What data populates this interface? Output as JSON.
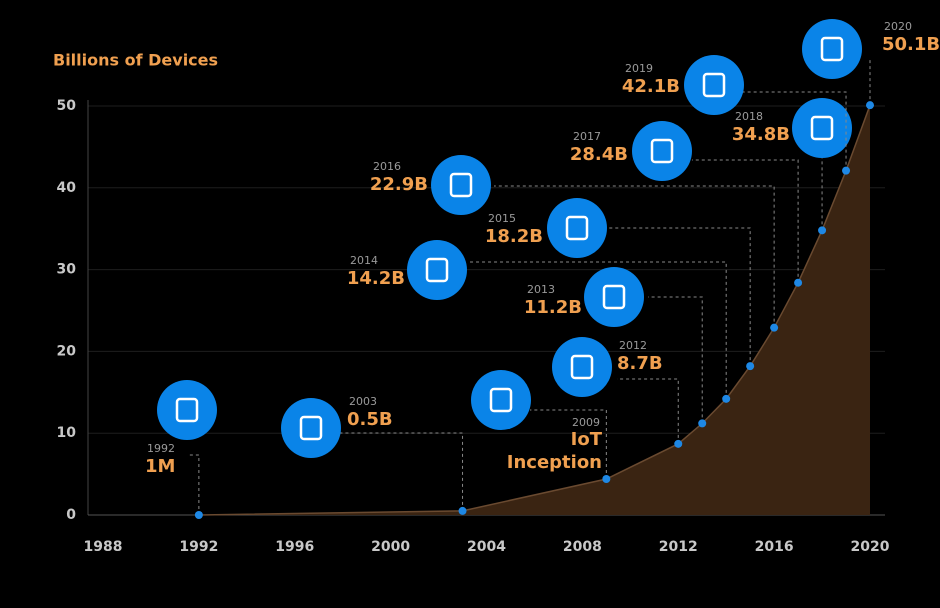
{
  "chart_data": {
    "type": "area",
    "y_axis_title": "Billions of Devices",
    "x": [
      1992,
      2003,
      2009,
      2012,
      2013,
      2014,
      2015,
      2016,
      2017,
      2018,
      2019,
      2020
    ],
    "values": [
      0.001,
      0.5,
      4.4,
      8.7,
      11.2,
      14.2,
      18.2,
      22.9,
      28.4,
      34.8,
      42.1,
      50.1
    ],
    "value_labels": [
      "1M",
      "0.5B",
      null,
      "8.7B",
      "11.2B",
      "14.2B",
      "18.2B",
      "22.9B",
      "28.4B",
      "34.8B",
      "42.1B",
      "50.1B"
    ],
    "annotation_lines": [
      "IoT",
      "Inception"
    ],
    "color": "#1e88e5",
    "xlim": [
      1988,
      2020
    ],
    "xticks": [
      1988,
      1992,
      1996,
      2000,
      2004,
      2008,
      2012,
      2016,
      2020
    ],
    "ylim": [
      0,
      50
    ],
    "yticks": [
      0,
      10,
      20,
      30,
      40,
      50
    ],
    "grid": true
  }
}
